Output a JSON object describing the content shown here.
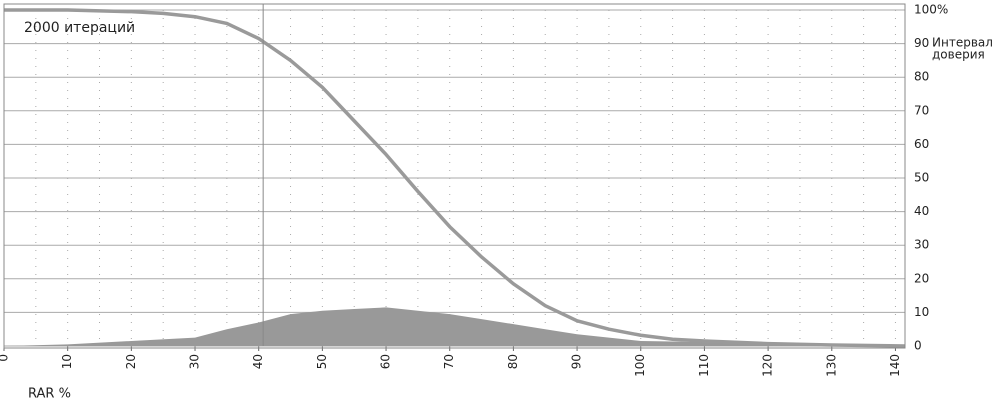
{
  "chart_data": {
    "type": "line-area",
    "annotation": "2000 итераций",
    "ci_label_lines": [
      "Интервал",
      "доверия"
    ],
    "ci_x": 40.7,
    "xlabel": "RAR %",
    "xlim": [
      0,
      141.5
    ],
    "ylim": [
      0,
      100
    ],
    "xticks": [
      0,
      10,
      20,
      30,
      40,
      50,
      60,
      70,
      80,
      90,
      100,
      110,
      120,
      130,
      140
    ],
    "xminorticks": [
      5,
      15,
      25,
      35,
      45,
      55,
      65,
      75,
      85,
      95,
      105,
      115,
      125,
      135
    ],
    "yticks": [
      0,
      10,
      20,
      30,
      40,
      50,
      60,
      70,
      80,
      90,
      {
        "value": 100,
        "label": "100%"
      }
    ],
    "grid": true,
    "series": [
      {
        "kind": "line",
        "color": "#9a9a9a",
        "x": [
          0,
          10,
          20,
          25,
          30,
          35,
          40,
          45,
          50,
          55,
          60,
          65,
          70,
          75,
          80,
          85,
          90,
          95,
          100,
          105,
          110,
          120,
          130,
          141.5
        ],
        "values": [
          100,
          100,
          99.5,
          99,
          98,
          96,
          91.5,
          85,
          77,
          67,
          57,
          46,
          35.5,
          26.5,
          18.5,
          12,
          7.5,
          5,
          3.2,
          2,
          1.5,
          0.7,
          0.3,
          0
        ]
      },
      {
        "kind": "area",
        "color": "#999999",
        "x": [
          0,
          10,
          20,
          30,
          35,
          40,
          45,
          50,
          55,
          60,
          65,
          70,
          75,
          80,
          85,
          90,
          95,
          100,
          110,
          120,
          130,
          141.5
        ],
        "values": [
          0,
          0.5,
          1.5,
          2.5,
          5,
          7,
          9.5,
          10.5,
          11,
          11.5,
          10.5,
          9.5,
          8,
          6.5,
          5,
          3.5,
          2.5,
          1.5,
          1.2,
          0.8,
          0.5,
          0.2
        ]
      }
    ]
  }
}
